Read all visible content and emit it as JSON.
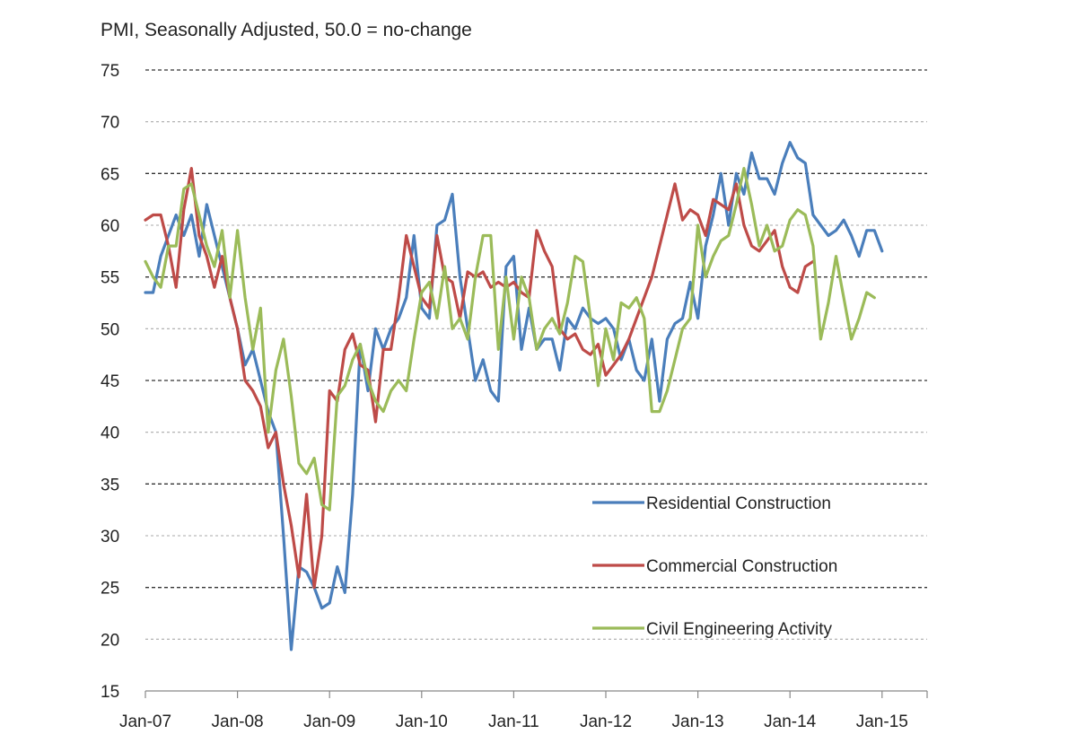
{
  "chart_data": {
    "type": "line",
    "title": "PMI, Seasonally Adjusted, 50.0 = no-change",
    "xlabel": "",
    "ylabel": "",
    "ylim": [
      15,
      75
    ],
    "yticks": [
      15,
      20,
      25,
      30,
      35,
      40,
      45,
      50,
      55,
      60,
      65,
      70,
      75
    ],
    "xtick_labels": [
      "Jan-07",
      "Jan-08",
      "Jan-09",
      "Jan-10",
      "Jan-11",
      "Jan-12",
      "Jan-13",
      "Jan-14",
      "Jan-15"
    ],
    "x_start": "Jan-07",
    "grid": "horizontal dashed, every 5 units",
    "legend_position": "lower-right, inside plot",
    "series": [
      {
        "name": "Residential Construction",
        "color": "#4a7ebb",
        "values": [
          53.5,
          53.5,
          57,
          59,
          61,
          59,
          61,
          57,
          62,
          59,
          56,
          53,
          50,
          46.5,
          48,
          45,
          42,
          40,
          30,
          19,
          27,
          26.5,
          25,
          23,
          23.5,
          27,
          24.5,
          34,
          48.5,
          44,
          50,
          48,
          50,
          51,
          53,
          59,
          52,
          51,
          60,
          60.5,
          63,
          55,
          50,
          45,
          47,
          44,
          43,
          56,
          57,
          48,
          52,
          48,
          49,
          49,
          46,
          51,
          50,
          52,
          51,
          50.5,
          51,
          50,
          47,
          49,
          46,
          45,
          49,
          43,
          49,
          50.5,
          51,
          54.5,
          51,
          58,
          61,
          65,
          60,
          65,
          63,
          67,
          64.5,
          64.5,
          63,
          66,
          68,
          66.5,
          66,
          61,
          60,
          59,
          59.5,
          60.5,
          59,
          57,
          59.5,
          59.5,
          57.5
        ]
      },
      {
        "name": "Commercial Construction",
        "color": "#be4b48",
        "values": [
          60.5,
          61,
          61,
          58,
          54,
          61.5,
          65.5,
          59,
          57,
          54,
          57,
          53,
          50,
          45,
          44,
          42.5,
          38.5,
          40,
          35,
          31,
          26,
          34,
          25,
          30,
          44,
          43,
          48,
          49.5,
          46.5,
          46,
          41,
          48,
          48,
          53,
          59,
          56,
          53,
          52,
          59,
          55,
          54.5,
          51,
          55.5,
          55,
          55.5,
          54,
          54.5,
          54,
          54.5,
          53.5,
          53,
          59.5,
          57.5,
          56,
          50,
          49,
          49.5,
          48,
          47.5,
          48.5,
          45.5,
          46.5,
          47.5,
          49,
          51,
          53,
          55,
          58,
          61,
          64,
          60.5,
          61.5,
          61,
          59,
          62.5,
          62,
          61.5,
          64,
          60,
          58,
          57.5,
          58.5,
          59.5,
          56,
          54,
          53.5,
          56,
          56.5
        ]
      },
      {
        "name": "Civil Engineering Activity",
        "color": "#9bbb59",
        "values": [
          56.5,
          55,
          54,
          58,
          58,
          63.5,
          64,
          61,
          58,
          56,
          59.5,
          53,
          59.5,
          53,
          48,
          52,
          40,
          46,
          49,
          43.5,
          37,
          36,
          37.5,
          33,
          32.5,
          43.5,
          44.5,
          47,
          48.5,
          45,
          43,
          42,
          44,
          45,
          44,
          49,
          53.5,
          54.5,
          51,
          56,
          50,
          51,
          49,
          55,
          59,
          59,
          48,
          55,
          49,
          55,
          53,
          48,
          50,
          51,
          49.5,
          52.5,
          57,
          56.5,
          51,
          44.5,
          50,
          47,
          52.5,
          52,
          53,
          51,
          42,
          42,
          44,
          47,
          50,
          51,
          60,
          55,
          57,
          58.5,
          59,
          62,
          65.5,
          62,
          58,
          60,
          57.5,
          58,
          60.5,
          61.5,
          61,
          58,
          49,
          52.5,
          57,
          53,
          49,
          51,
          53.5,
          53
        ]
      }
    ]
  }
}
